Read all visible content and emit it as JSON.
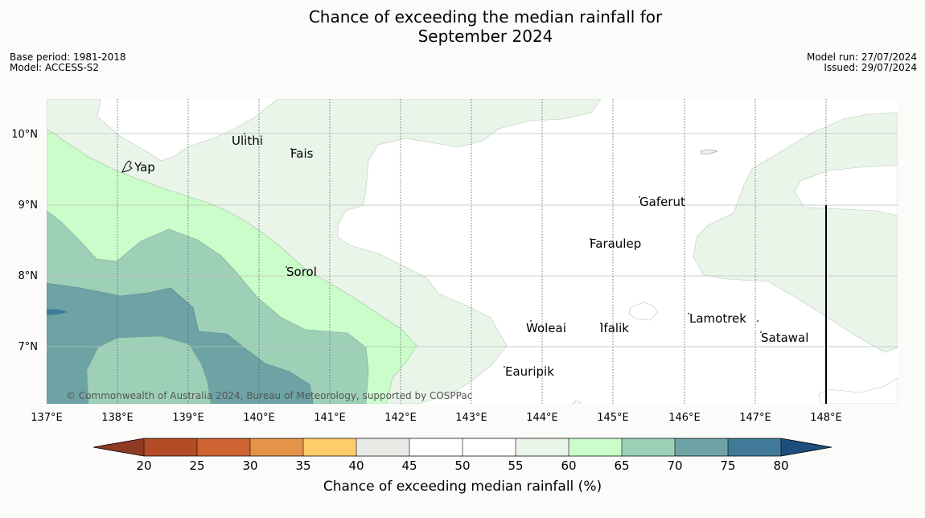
{
  "title_line1": "Chance of exceeding the median rainfall for",
  "title_line2": "September 2024",
  "base_period": "Base period: 1981-2018",
  "model": "Model: ACCESS-S2",
  "model_run": "Model run: 27/07/2024",
  "issued": "Issued: 29/07/2024",
  "lat_labels": [
    "10°N",
    "9°N",
    "8°N",
    "7°N"
  ],
  "lon_labels": [
    "137°E",
    "138°E",
    "139°E",
    "140°E",
    "141°E",
    "142°E",
    "143°E",
    "144°E",
    "145°E",
    "146°E",
    "147°E",
    "148°E"
  ],
  "places": {
    "ulithi": "Ulithi",
    "fais": "Fais",
    "yap": "Yap",
    "gaferut": "Gaferut",
    "faraulep": "Faraulep",
    "sorol": "Sorol",
    "lamotrek": "Lamotrek",
    "satawal": "Satawal",
    "woleai": "Woleai",
    "ifalik": "Ifalik",
    "eauripik": "Eauripik"
  },
  "copyright": "© Commonwealth of Australia 2024, Bureau of Meteorology, supported by COSPPac",
  "colorbar": {
    "title": "Chance of exceeding median rainfall (%)",
    "ticks": [
      "20",
      "25",
      "30",
      "35",
      "40",
      "45",
      "50",
      "55",
      "60",
      "65",
      "70",
      "75",
      "80"
    ],
    "colors": [
      "#8e3a22",
      "#b34b26",
      "#ce6331",
      "#e39448",
      "#fdcd6a",
      "#e9e9e5",
      "#ffffff",
      "#ffffff",
      "#eaf5ea",
      "#cbfdcb",
      "#9ed0b8",
      "#6ea3a5",
      "#407a98",
      "#1d4f7c"
    ]
  }
}
